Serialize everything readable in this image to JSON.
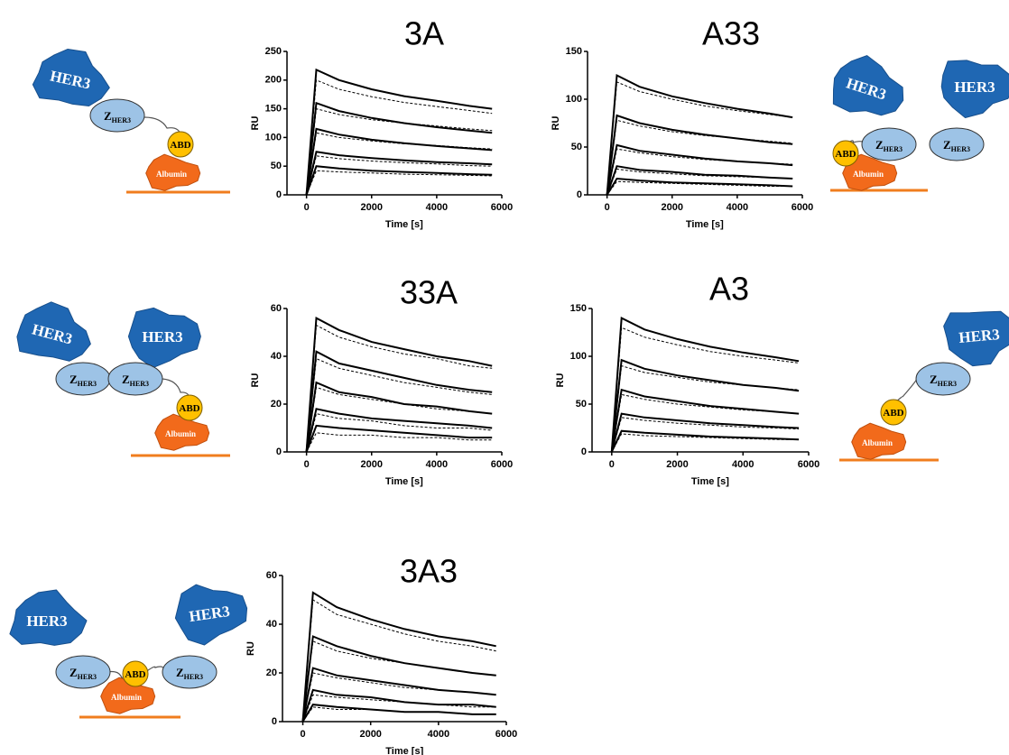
{
  "labels": {
    "her3": "HER3",
    "z": "Z",
    "z_sub": "HER3",
    "abd": "ABD",
    "albumin": "Albumin"
  },
  "chart_data": [
    {
      "type": "line",
      "title": "3A",
      "y_label": "RU",
      "x_label": "Time [s]",
      "x": [
        0,
        300,
        1000,
        2000,
        3000,
        4000,
        5000,
        5700
      ],
      "xlim": [
        -600,
        6000
      ],
      "xticks": [
        0,
        2000,
        4000,
        6000
      ],
      "ylim": [
        0,
        250
      ],
      "yticks": [
        0,
        50,
        100,
        150,
        200,
        250
      ],
      "series": [
        {
          "color": "#000000",
          "style": "solid",
          "values": [
            0,
            218,
            200,
            184,
            172,
            164,
            155,
            150
          ]
        },
        {
          "color": "#000000",
          "style": "solid",
          "values": [
            0,
            160,
            146,
            134,
            125,
            118,
            112,
            108
          ]
        },
        {
          "color": "#000000",
          "style": "solid",
          "values": [
            0,
            115,
            105,
            96,
            90,
            85,
            81,
            78
          ]
        },
        {
          "color": "#000000",
          "style": "solid",
          "values": [
            0,
            75,
            69,
            64,
            60,
            57,
            55,
            53
          ]
        },
        {
          "color": "#000000",
          "style": "solid",
          "values": [
            0,
            50,
            46,
            42,
            40,
            38,
            36,
            35
          ]
        },
        {
          "color": "#000000",
          "style": "dashed",
          "values": [
            0,
            200,
            184,
            171,
            161,
            154,
            147,
            142
          ]
        },
        {
          "color": "#000000",
          "style": "dashed",
          "values": [
            0,
            150,
            140,
            131,
            125,
            120,
            115,
            112
          ]
        },
        {
          "color": "#000000",
          "style": "dashed",
          "values": [
            0,
            108,
            100,
            94,
            89,
            86,
            82,
            80
          ]
        },
        {
          "color": "#000000",
          "style": "dashed",
          "values": [
            0,
            68,
            63,
            59,
            56,
            54,
            51,
            50
          ]
        },
        {
          "color": "#000000",
          "style": "dashed",
          "values": [
            0,
            42,
            40,
            38,
            36,
            35,
            34,
            33
          ]
        }
      ]
    },
    {
      "type": "line",
      "title": "A33",
      "y_label": "RU",
      "x_label": "Time [s]",
      "x": [
        0,
        300,
        1000,
        2000,
        3000,
        4000,
        5000,
        5700
      ],
      "xlim": [
        -600,
        6000
      ],
      "xticks": [
        0,
        2000,
        4000,
        6000
      ],
      "ylim": [
        0,
        150
      ],
      "yticks": [
        0,
        50,
        100,
        150
      ],
      "series": [
        {
          "color": "#000000",
          "style": "solid",
          "values": [
            0,
            125,
            113,
            103,
            96,
            90,
            85,
            81
          ]
        },
        {
          "color": "#000000",
          "style": "solid",
          "values": [
            0,
            83,
            75,
            68,
            63,
            59,
            55,
            53
          ]
        },
        {
          "color": "#000000",
          "style": "solid",
          "values": [
            0,
            52,
            46,
            42,
            38,
            35,
            33,
            31
          ]
        },
        {
          "color": "#000000",
          "style": "solid",
          "values": [
            0,
            30,
            26,
            24,
            21,
            20,
            18,
            17
          ]
        },
        {
          "color": "#000000",
          "style": "solid",
          "values": [
            0,
            17,
            15,
            13,
            12,
            11,
            10,
            9
          ]
        },
        {
          "color": "#000000",
          "style": "dashed",
          "values": [
            0,
            118,
            108,
            100,
            93,
            88,
            84,
            81
          ]
        },
        {
          "color": "#000000",
          "style": "dashed",
          "values": [
            0,
            78,
            72,
            66,
            62,
            59,
            56,
            54
          ]
        },
        {
          "color": "#000000",
          "style": "dashed",
          "values": [
            0,
            48,
            44,
            40,
            37,
            35,
            33,
            32
          ]
        },
        {
          "color": "#000000",
          "style": "dashed",
          "values": [
            0,
            27,
            24,
            22,
            20,
            19,
            18,
            17
          ]
        },
        {
          "color": "#000000",
          "style": "dashed",
          "values": [
            0,
            14,
            13,
            12,
            11,
            10,
            9,
            9
          ]
        }
      ]
    },
    {
      "type": "line",
      "title": "33A",
      "y_label": "RU",
      "x_label": "Time [s]",
      "x": [
        0,
        300,
        1000,
        2000,
        3000,
        4000,
        5000,
        5700
      ],
      "xlim": [
        -600,
        6000
      ],
      "xticks": [
        0,
        2000,
        4000,
        6000
      ],
      "ylim": [
        0,
        60
      ],
      "yticks": [
        0,
        20,
        40,
        60
      ],
      "series": [
        {
          "color": "#000000",
          "style": "solid",
          "values": [
            0,
            56,
            51,
            46,
            43,
            40,
            38,
            36
          ]
        },
        {
          "color": "#000000",
          "style": "solid",
          "values": [
            0,
            42,
            37,
            34,
            31,
            28,
            26,
            25
          ]
        },
        {
          "color": "#000000",
          "style": "solid",
          "values": [
            0,
            29,
            25,
            23,
            20,
            19,
            17,
            16
          ]
        },
        {
          "color": "#000000",
          "style": "solid",
          "values": [
            0,
            18,
            16,
            14,
            13,
            12,
            11,
            10
          ]
        },
        {
          "color": "#000000",
          "style": "solid",
          "values": [
            0,
            11,
            10,
            9,
            8,
            7,
            6,
            6
          ]
        },
        {
          "color": "#000000",
          "style": "dashed",
          "values": [
            0,
            53,
            48,
            44,
            41,
            39,
            36,
            35
          ]
        },
        {
          "color": "#000000",
          "style": "dashed",
          "values": [
            0,
            39,
            35,
            32,
            29,
            27,
            25,
            24
          ]
        },
        {
          "color": "#000000",
          "style": "dashed",
          "values": [
            0,
            27,
            24,
            22,
            20,
            18,
            17,
            16
          ]
        },
        {
          "color": "#000000",
          "style": "dashed",
          "values": [
            0,
            16,
            14,
            13,
            11,
            10,
            10,
            9
          ]
        },
        {
          "color": "#000000",
          "style": "dashed",
          "values": [
            0,
            8,
            7,
            7,
            6,
            6,
            5,
            5
          ]
        }
      ]
    },
    {
      "type": "line",
      "title": "A3",
      "y_label": "RU",
      "x_label": "Time [s]",
      "x": [
        0,
        300,
        1000,
        2000,
        3000,
        4000,
        5000,
        5700
      ],
      "xlim": [
        -600,
        6000
      ],
      "xticks": [
        0,
        2000,
        4000,
        6000
      ],
      "ylim": [
        0,
        150
      ],
      "yticks": [
        0,
        50,
        100,
        150
      ],
      "series": [
        {
          "color": "#000000",
          "style": "solid",
          "values": [
            0,
            140,
            128,
            118,
            110,
            104,
            99,
            95
          ]
        },
        {
          "color": "#000000",
          "style": "solid",
          "values": [
            0,
            96,
            87,
            80,
            75,
            70,
            67,
            64
          ]
        },
        {
          "color": "#000000",
          "style": "solid",
          "values": [
            0,
            65,
            58,
            53,
            48,
            45,
            42,
            40
          ]
        },
        {
          "color": "#000000",
          "style": "solid",
          "values": [
            0,
            40,
            36,
            33,
            30,
            28,
            26,
            25
          ]
        },
        {
          "color": "#000000",
          "style": "solid",
          "values": [
            0,
            22,
            20,
            18,
            16,
            15,
            14,
            13
          ]
        },
        {
          "color": "#000000",
          "style": "dashed",
          "values": [
            0,
            130,
            120,
            112,
            105,
            100,
            96,
            93
          ]
        },
        {
          "color": "#000000",
          "style": "dashed",
          "values": [
            0,
            90,
            83,
            78,
            73,
            70,
            67,
            65
          ]
        },
        {
          "color": "#000000",
          "style": "dashed",
          "values": [
            0,
            60,
            55,
            50,
            47,
            44,
            42,
            40
          ]
        },
        {
          "color": "#000000",
          "style": "dashed",
          "values": [
            0,
            36,
            33,
            30,
            28,
            26,
            25,
            24
          ]
        },
        {
          "color": "#000000",
          "style": "dashed",
          "values": [
            0,
            19,
            17,
            16,
            15,
            14,
            13,
            13
          ]
        }
      ]
    },
    {
      "type": "line",
      "title": "3A3",
      "y_label": "RU",
      "x_label": "Time [s]",
      "x": [
        0,
        300,
        1000,
        2000,
        3000,
        4000,
        5000,
        5700
      ],
      "xlim": [
        -600,
        6000
      ],
      "xticks": [
        0,
        2000,
        4000,
        6000
      ],
      "ylim": [
        0,
        60
      ],
      "yticks": [
        0,
        20,
        40,
        60
      ],
      "series": [
        {
          "color": "#000000",
          "style": "solid",
          "values": [
            0,
            53,
            47,
            42,
            38,
            35,
            33,
            31
          ]
        },
        {
          "color": "#000000",
          "style": "solid",
          "values": [
            0,
            35,
            31,
            27,
            24,
            22,
            20,
            19
          ]
        },
        {
          "color": "#000000",
          "style": "solid",
          "values": [
            0,
            22,
            19,
            17,
            15,
            13,
            12,
            11
          ]
        },
        {
          "color": "#000000",
          "style": "solid",
          "values": [
            0,
            13,
            11,
            10,
            8,
            7,
            7,
            6
          ]
        },
        {
          "color": "#000000",
          "style": "solid",
          "values": [
            0,
            7,
            6,
            5,
            4,
            4,
            3,
            3
          ]
        },
        {
          "color": "#000000",
          "style": "dashed",
          "values": [
            0,
            50,
            44,
            40,
            36,
            33,
            31,
            29
          ]
        },
        {
          "color": "#000000",
          "style": "dashed",
          "values": [
            0,
            33,
            29,
            26,
            24,
            22,
            20,
            19
          ]
        },
        {
          "color": "#000000",
          "style": "dashed",
          "values": [
            0,
            20,
            18,
            16,
            14,
            13,
            12,
            11
          ]
        },
        {
          "color": "#000000",
          "style": "dashed",
          "values": [
            0,
            11,
            10,
            9,
            8,
            7,
            6,
            6
          ]
        },
        {
          "color": "#000000",
          "style": "dashed",
          "values": [
            0,
            6,
            5,
            5,
            4,
            4,
            3,
            3
          ]
        }
      ]
    }
  ]
}
